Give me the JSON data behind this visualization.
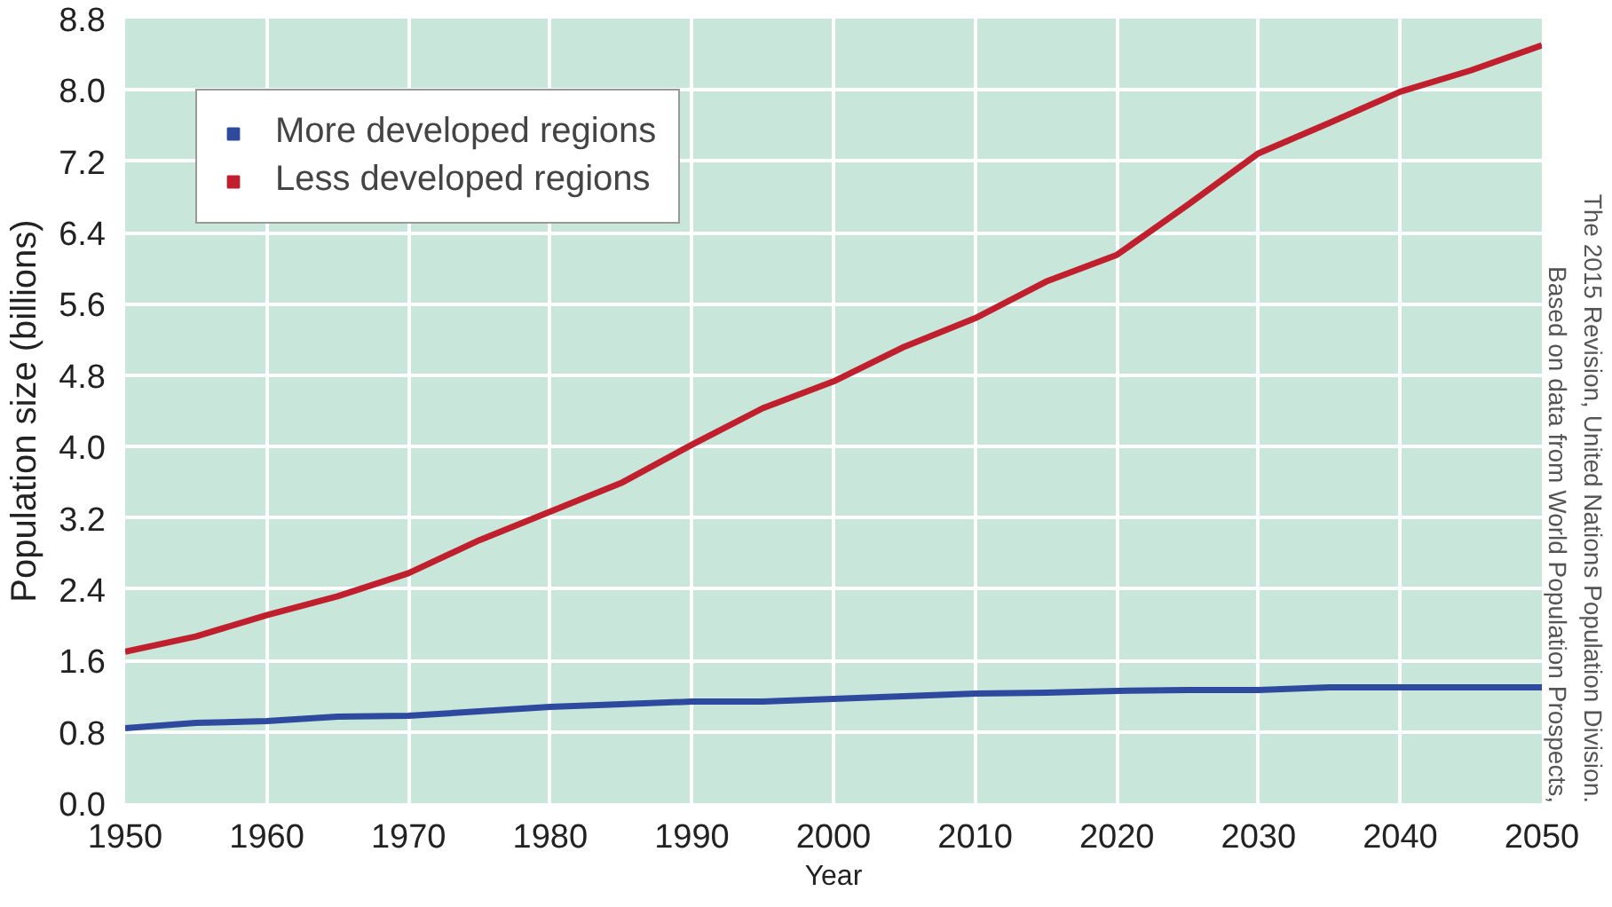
{
  "chart_data": {
    "type": "line",
    "xlabel": "Year",
    "ylabel": "Population size (billions)",
    "x": [
      1950,
      1955,
      1960,
      1965,
      1970,
      1975,
      1980,
      1985,
      1990,
      1995,
      2000,
      2005,
      2010,
      2015,
      2020,
      2025,
      2030,
      2035,
      2040,
      2045,
      2050
    ],
    "series": [
      {
        "name": "More developed regions",
        "color": "#2e4a9e",
        "values": [
          0.84,
          0.9,
          0.92,
          0.97,
          0.98,
          1.03,
          1.08,
          1.11,
          1.14,
          1.14,
          1.17,
          1.2,
          1.23,
          1.24,
          1.26,
          1.27,
          1.27,
          1.3,
          1.3,
          1.3,
          1.3
        ]
      },
      {
        "name": "Less developed regions",
        "color": "#c0202e",
        "values": [
          1.7,
          1.87,
          2.11,
          2.32,
          2.58,
          2.95,
          3.27,
          3.59,
          4.02,
          4.43,
          4.73,
          5.12,
          5.44,
          5.85,
          6.15,
          6.71,
          7.29,
          7.63,
          7.98,
          8.22,
          8.5
        ]
      }
    ],
    "xlim": [
      1950,
      2050
    ],
    "xticks": [
      1950,
      1960,
      1970,
      1980,
      1990,
      2000,
      2010,
      2020,
      2030,
      2040,
      2050
    ],
    "ylim": [
      0,
      8.8
    ],
    "yticks": [
      {
        "value": 0,
        "label": "0.0"
      },
      0.8,
      1.6,
      2.4,
      3.2,
      {
        "value": 4.0,
        "label": "4.0"
      },
      4.8,
      5.6,
      6.4,
      7.2,
      {
        "value": 8.0,
        "label": "8.0"
      },
      8.8
    ],
    "grid": true,
    "legend": "top left",
    "marker": "none",
    "line_style": "solid",
    "annotations": [
      "Based on data from World Population Prospects,",
      "The 2015 Revision, United Nations Population Division."
    ]
  }
}
